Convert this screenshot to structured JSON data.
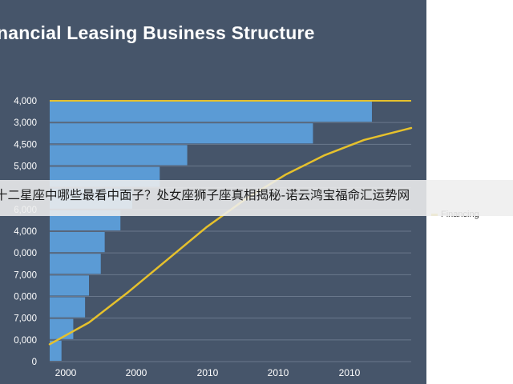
{
  "slide": {
    "title": "nancial Leasing Business Structure"
  },
  "caption": {
    "text": "十二星座中哪些最看中面子？处女座狮子座真相揭秘-诺云鸿宝福命汇运势网"
  },
  "colors": {
    "background": "#46556a",
    "bars": "#5b9bd5",
    "line": "#e6c12c",
    "title": "#ffffff"
  },
  "chart_data": {
    "type": "bar",
    "orientation": "horizontal",
    "y_tick_labels": [
      "4,000",
      "3,000",
      "4,500",
      "5,000",
      "",
      "6,000",
      "4,000",
      "0,000",
      "7,000",
      "0,000",
      "7,000",
      "0,000",
      "0"
    ],
    "bar_values": [
      82,
      67,
      35,
      28,
      21,
      18,
      14,
      13,
      10,
      9,
      6,
      3
    ],
    "x_tick_labels": [
      "2000",
      "2000",
      "2010",
      "2010",
      "2010"
    ],
    "xlim": [
      0,
      92
    ],
    "series": [
      {
        "name": "Financing",
        "type": "line",
        "x": [
          0,
          10,
          20,
          30,
          40,
          50,
          60,
          70,
          80,
          92
        ],
        "y": [
          0.8,
          1.8,
          3.2,
          4.7,
          6.2,
          7.5,
          8.6,
          9.5,
          10.2,
          10.75
        ]
      }
    ],
    "gridlines": true,
    "legend_position": "right"
  }
}
